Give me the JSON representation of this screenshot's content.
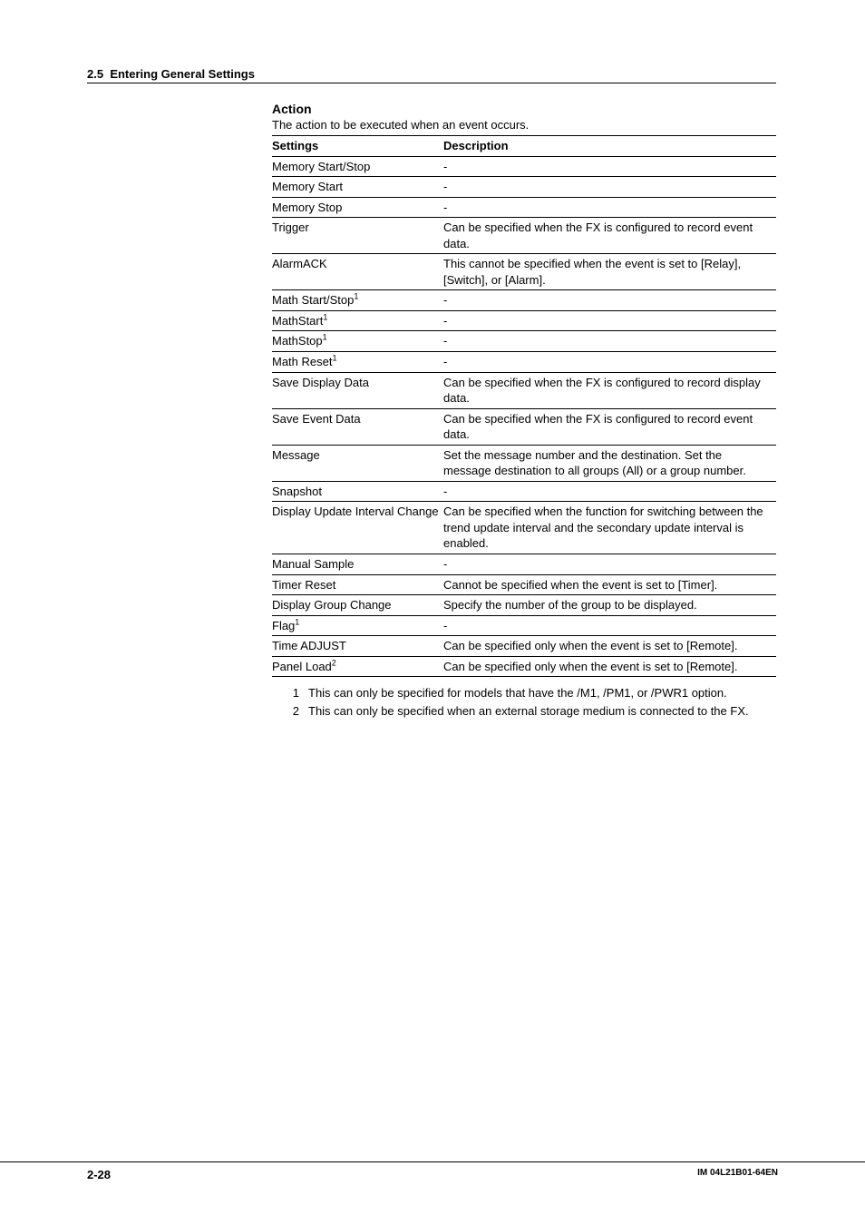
{
  "section": {
    "number": "2.5",
    "title": "Entering General Settings"
  },
  "action": {
    "title": "Action",
    "intro": "The action to be executed when an event occurs.",
    "headers": {
      "settings": "Settings",
      "description": "Description"
    },
    "rows": [
      {
        "setting": "Memory Start/Stop",
        "sup": "",
        "desc": "-"
      },
      {
        "setting": "Memory Start",
        "sup": "",
        "desc": "-"
      },
      {
        "setting": "Memory Stop",
        "sup": "",
        "desc": "-"
      },
      {
        "setting": "Trigger",
        "sup": "",
        "desc": "Can be specified when the FX is configured to record event data."
      },
      {
        "setting": "AlarmACK",
        "sup": "",
        "desc": "This cannot be specified when the event is set to [Relay], [Switch], or [Alarm]."
      },
      {
        "setting": "Math Start/Stop",
        "sup": "1",
        "desc": "-"
      },
      {
        "setting": "MathStart",
        "sup": "1",
        "desc": "-"
      },
      {
        "setting": "MathStop",
        "sup": "1",
        "desc": "-"
      },
      {
        "setting": "Math Reset",
        "sup": "1",
        "desc": "-"
      },
      {
        "setting": "Save Display Data",
        "sup": "",
        "desc": "Can be specified when the FX is configured to record display data."
      },
      {
        "setting": "Save Event Data",
        "sup": "",
        "desc": "Can be specified when the FX is configured to record event data."
      },
      {
        "setting": "Message",
        "sup": "",
        "desc": "Set the message number and the destination. Set the message destination to all groups (All) or a group number."
      },
      {
        "setting": "Snapshot",
        "sup": "",
        "desc": "-"
      },
      {
        "setting": "Display Update Interval Change",
        "sup": "",
        "desc": "Can be specified when the function for switching between the trend update interval and the secondary update interval is enabled."
      },
      {
        "setting": "Manual Sample",
        "sup": "",
        "desc": "-"
      },
      {
        "setting": "Timer Reset",
        "sup": "",
        "desc": "Cannot be specified when the event is set to [Timer]."
      },
      {
        "setting": "Display Group Change",
        "sup": "",
        "desc": "Specify the number of the group to be displayed."
      },
      {
        "setting": "Flag",
        "sup": "1",
        "desc": "-"
      },
      {
        "setting": "Time ADJUST",
        "sup": "",
        "desc": "Can be specified only when the event is set to [Remote]."
      },
      {
        "setting": "Panel Load",
        "sup": "2",
        "desc": "Can be specified only when the event is set to [Remote]."
      }
    ],
    "footnotes": [
      {
        "n": "1",
        "text": "This can only be specified for models that have the /M1, /PM1, or /PWR1 option."
      },
      {
        "n": "2",
        "text": "This can only be specified when an external storage medium is connected to the FX."
      }
    ]
  },
  "footer": {
    "page": "2-28",
    "doc": "IM 04L21B01-64EN"
  }
}
